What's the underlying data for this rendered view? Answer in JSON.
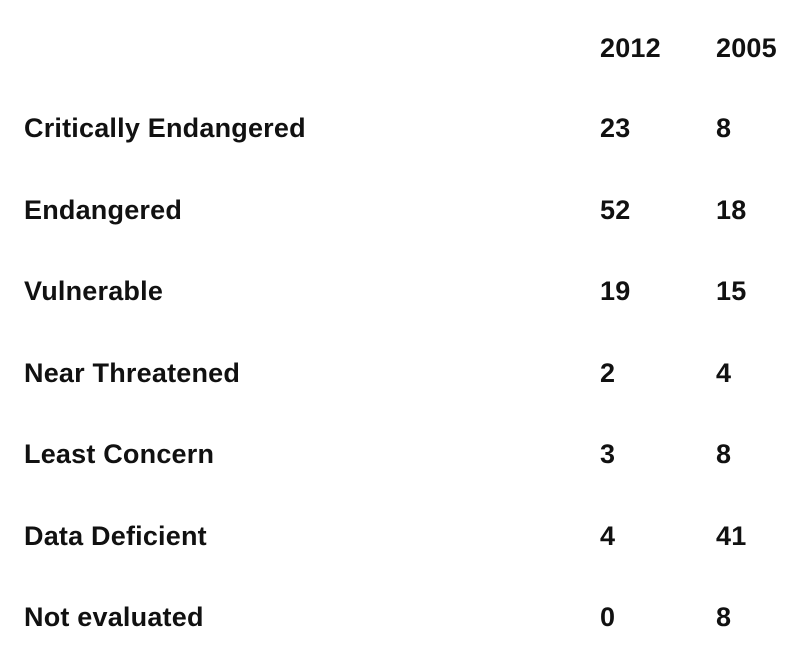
{
  "chart_data": {
    "type": "table",
    "columns": [
      "2012",
      "2005"
    ],
    "rows": [
      {
        "label": "Critically Endangered",
        "values": [
          "23",
          "8"
        ]
      },
      {
        "label": "Endangered",
        "values": [
          "52",
          "18"
        ]
      },
      {
        "label": "Vulnerable",
        "values": [
          "19",
          "15"
        ]
      },
      {
        "label": "Near Threatened",
        "values": [
          "2",
          "4"
        ]
      },
      {
        "label": "Least Concern",
        "values": [
          "3",
          "8"
        ]
      },
      {
        "label": "Data Deficient",
        "values": [
          "4",
          "41"
        ]
      },
      {
        "label": "Not evaluated",
        "values": [
          "0",
          "8"
        ]
      }
    ],
    "text_color": "#111111",
    "background": "#ffffff"
  }
}
